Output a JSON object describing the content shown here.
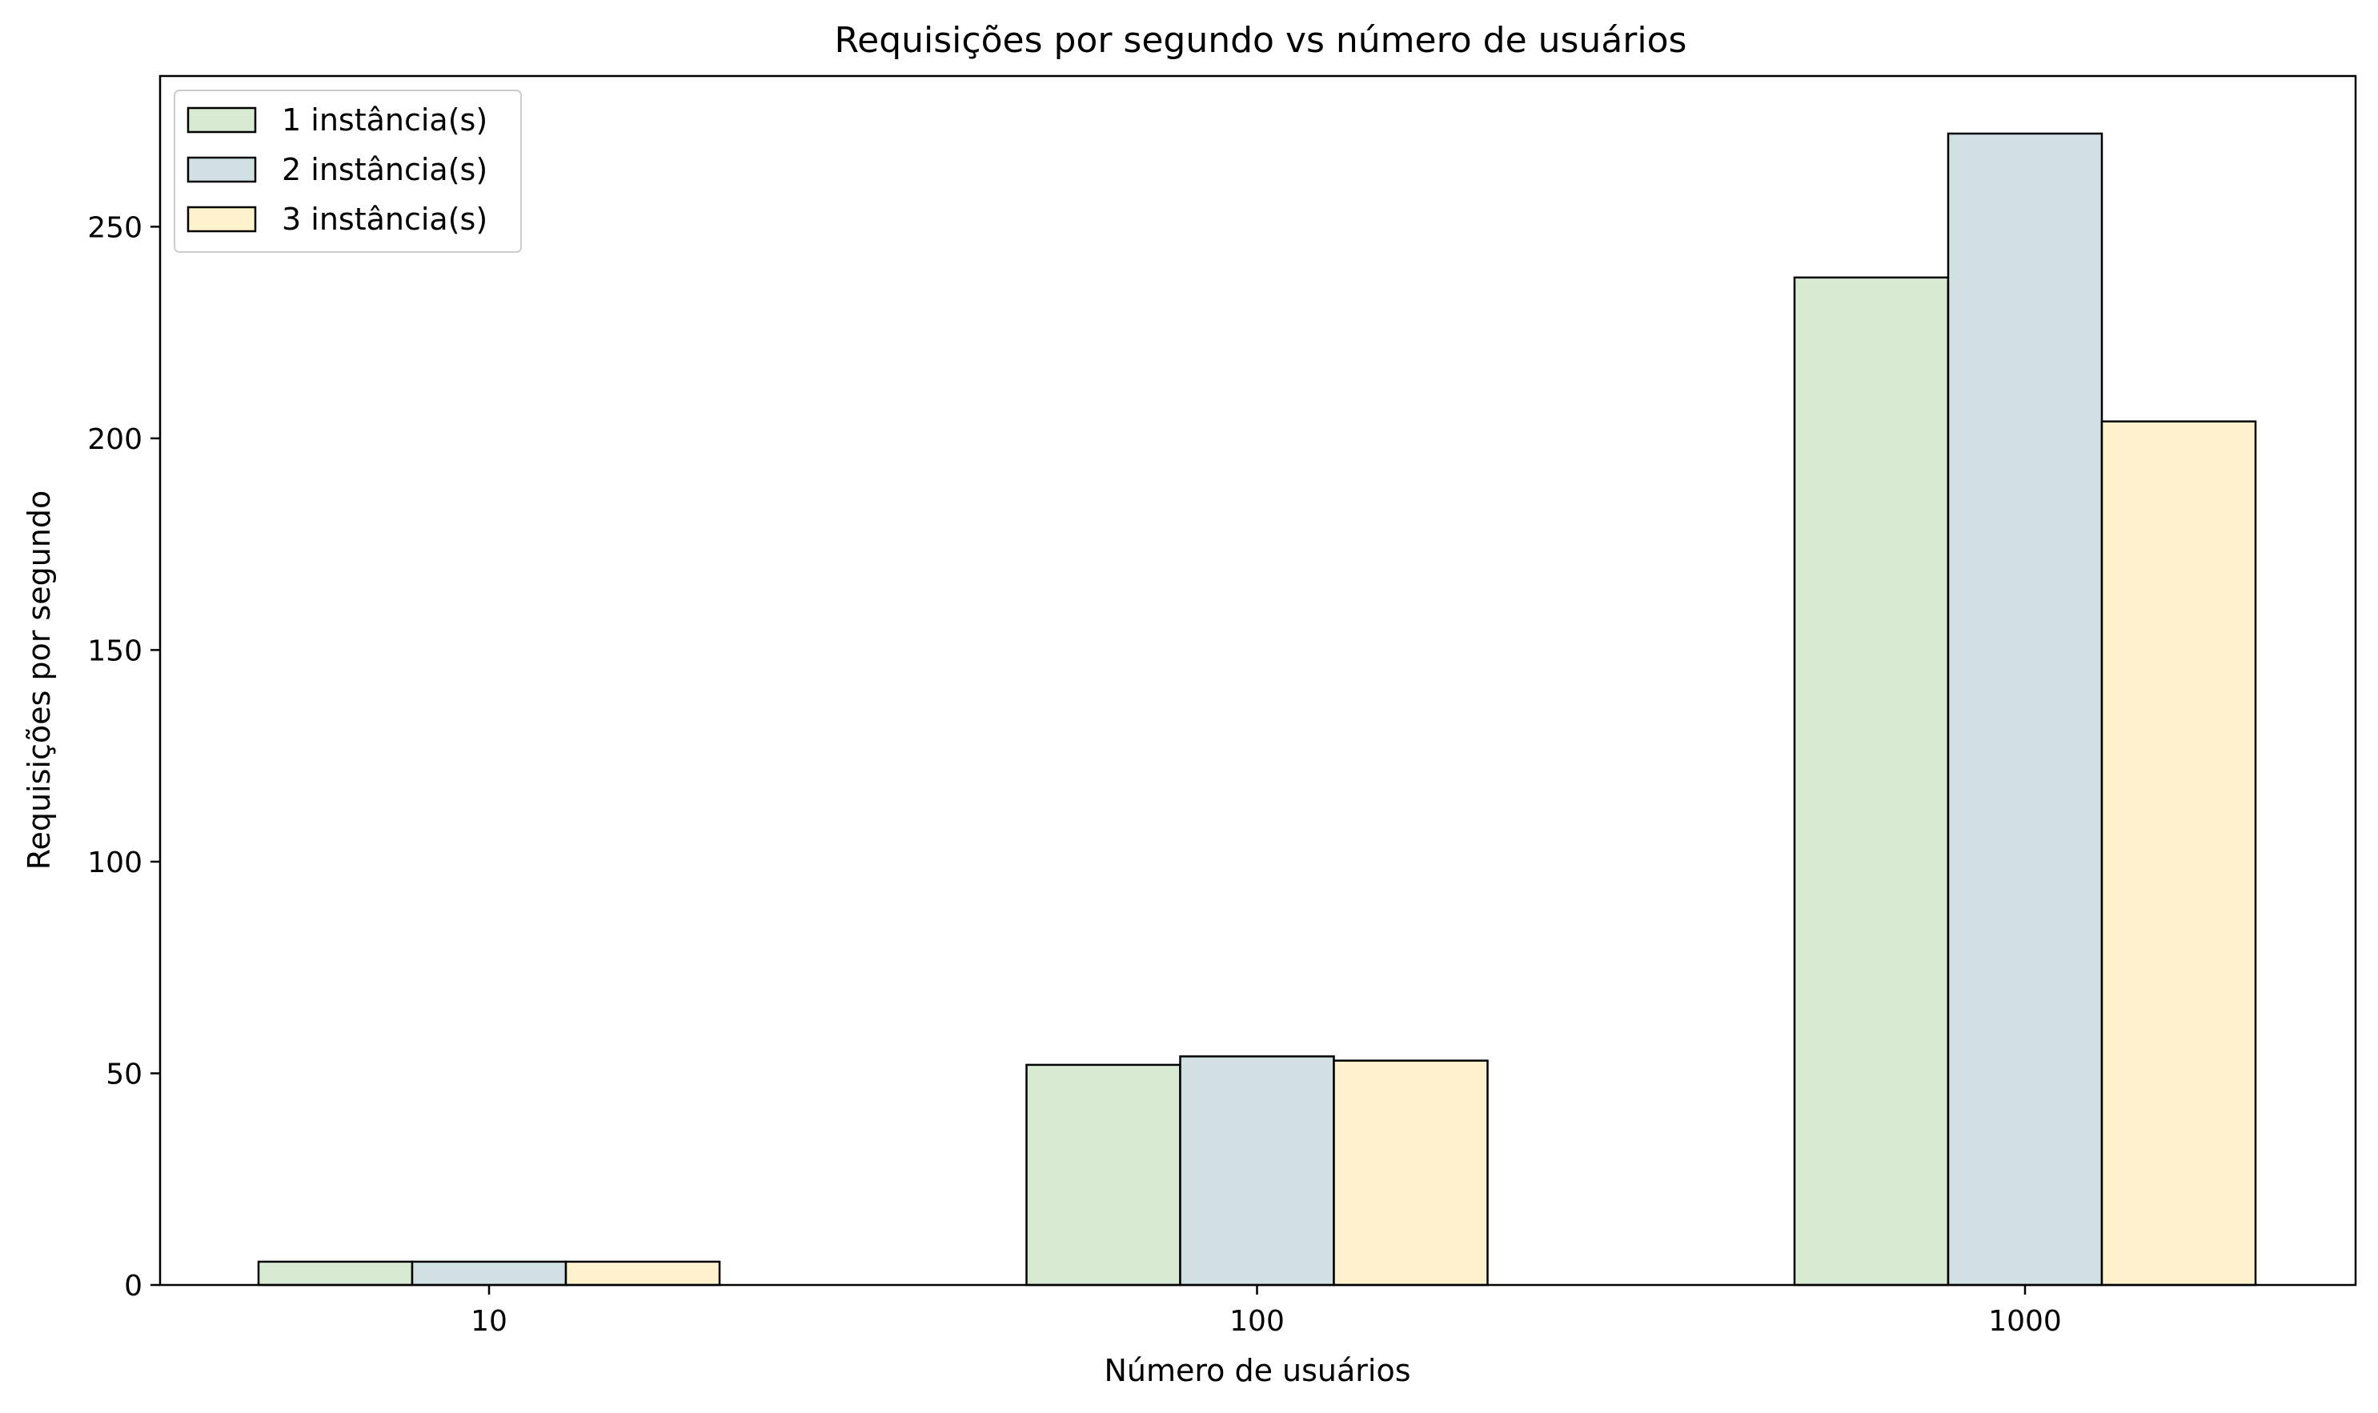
{
  "chart_data": {
    "type": "bar",
    "title": "Requisições por segundo vs número de usuários",
    "xlabel": "Número de usuários",
    "ylabel": "Requisições por segundo",
    "categories": [
      "10",
      "100",
      "1000"
    ],
    "series": [
      {
        "name": "1 instância(s)",
        "values": [
          5.5,
          52,
          238
        ],
        "color": "#d9ead3"
      },
      {
        "name": "2 instância(s)",
        "values": [
          5.5,
          54,
          272
        ],
        "color": "#d0e0e3"
      },
      {
        "name": "3 instância(s)",
        "values": [
          5.5,
          53,
          204
        ],
        "color": "#fff2cc"
      }
    ],
    "yticks": [
      0,
      50,
      100,
      150,
      200,
      250
    ],
    "ylim": [
      0,
      285.6
    ],
    "grid": false,
    "legend_position": "top-left",
    "edge_color": "#000000"
  }
}
